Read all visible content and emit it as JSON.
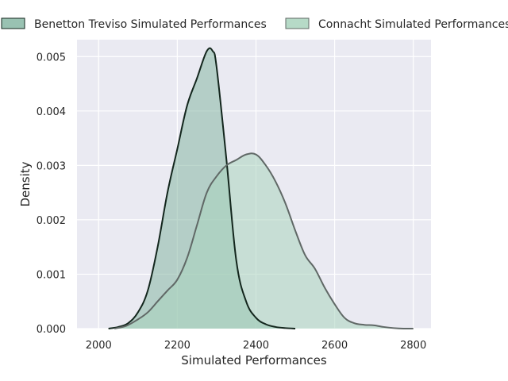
{
  "chart_data": {
    "type": "area",
    "xlabel": "Simulated Performances",
    "ylabel": "Density",
    "xlim": [
      1945,
      2845
    ],
    "ylim": [
      0,
      0.00531
    ],
    "x_ticks": [
      2000,
      2200,
      2400,
      2600,
      2800
    ],
    "x_tick_labels": [
      "2000",
      "2200",
      "2400",
      "2600",
      "2800"
    ],
    "y_ticks": [
      0,
      0.001,
      0.002,
      0.003,
      0.004,
      0.005
    ],
    "y_tick_labels": [
      "0.000",
      "0.001",
      "0.002",
      "0.003",
      "0.004",
      "0.005"
    ],
    "grid": true,
    "legend_position": "top",
    "series": [
      {
        "name": "Benetton Treviso Simulated Performances",
        "fill_color": "#87b7a4",
        "fill_opacity": 0.55,
        "line_color": "#13261d",
        "x": [
          2025,
          2050,
          2075,
          2100,
          2125,
          2150,
          2175,
          2200,
          2225,
          2250,
          2275,
          2290,
          2300,
          2325,
          2350,
          2375,
          2400,
          2425,
          2450,
          2475,
          2500
        ],
        "y": [
          0.0,
          3e-05,
          0.0001,
          0.0003,
          0.0007,
          0.0015,
          0.0025,
          0.0033,
          0.0041,
          0.0046,
          0.0051,
          0.0051,
          0.0048,
          0.0031,
          0.00125,
          0.0005,
          0.0002,
          8e-05,
          3e-05,
          1e-05,
          0.0
        ]
      },
      {
        "name": "Connacht Simulated Performances",
        "fill_color": "#a9d4bd",
        "fill_opacity": 0.55,
        "line_color": "#606866",
        "x": [
          2040,
          2070,
          2100,
          2125,
          2150,
          2175,
          2200,
          2225,
          2250,
          2275,
          2300,
          2325,
          2350,
          2375,
          2400,
          2425,
          2450,
          2475,
          2500,
          2525,
          2550,
          2575,
          2600,
          2625,
          2650,
          2675,
          2700,
          2725,
          2750,
          2775,
          2800
        ],
        "y": [
          0.0,
          5e-05,
          0.00017,
          0.0003,
          0.0005,
          0.0007,
          0.0009,
          0.0013,
          0.0019,
          0.0025,
          0.0028,
          0.003,
          0.0031,
          0.0032,
          0.0032,
          0.003,
          0.0027,
          0.0023,
          0.0018,
          0.00135,
          0.0011,
          0.00075,
          0.00045,
          0.0002,
          0.0001,
          7e-05,
          6e-05,
          3e-05,
          1e-05,
          0.0,
          0.0
        ]
      }
    ]
  },
  "colors": {
    "plot_background": "#eaeaf2",
    "grid": "#ffffff",
    "text": "#262626"
  }
}
